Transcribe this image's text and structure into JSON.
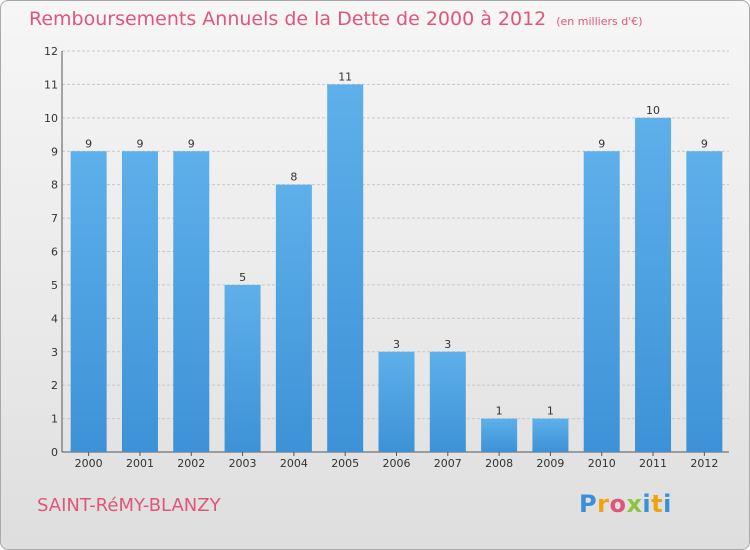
{
  "header": {
    "title": "Remboursements Annuels de la Dette de 2000 à 2012",
    "unit": "(en milliers d'€)"
  },
  "footer": {
    "commune": "SAINT-RéMY-BLANZY",
    "brand_letters": [
      "P",
      "r",
      "o",
      "x",
      "i",
      "t",
      "i"
    ],
    "brand_colors": [
      "#3a8fd6",
      "#f0a30a",
      "#e0567a",
      "#8cc43f",
      "#3a8fd6",
      "#f0a30a",
      "#3a8fd6"
    ]
  },
  "colors": {
    "bar": "#3d92d7",
    "bar_light": "#5eb0ea",
    "grid": "#c8c8c8",
    "axis_text": "#333333",
    "title": "#e0567a"
  },
  "chart_data": {
    "type": "bar",
    "categories": [
      "2000",
      "2001",
      "2002",
      "2003",
      "2004",
      "2005",
      "2006",
      "2007",
      "2008",
      "2009",
      "2010",
      "2011",
      "2012"
    ],
    "values": [
      9,
      9,
      9,
      5,
      8,
      11,
      3,
      3,
      1,
      1,
      9,
      10,
      9
    ],
    "ylim": [
      0,
      12
    ],
    "yticks": [
      0,
      1,
      2,
      3,
      4,
      5,
      6,
      7,
      8,
      9,
      10,
      11,
      12
    ],
    "grid": true,
    "title": "Remboursements Annuels de la Dette de 2000 à 2012"
  }
}
